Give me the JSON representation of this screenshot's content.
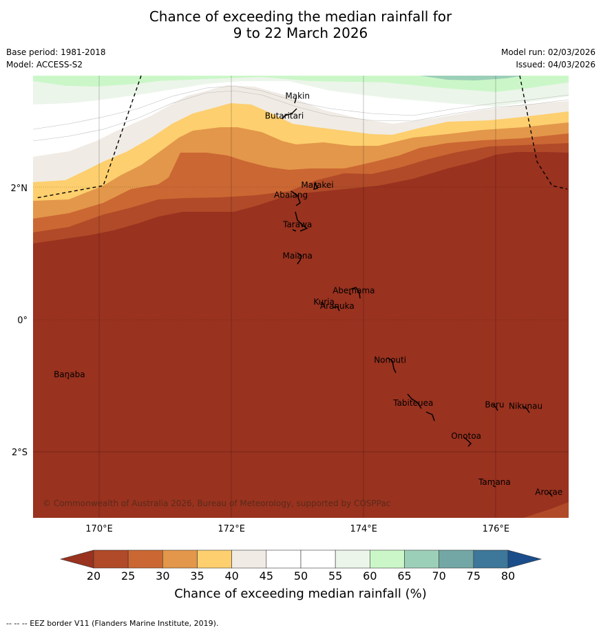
{
  "title": {
    "line1": "Chance of exceeding the median rainfall for",
    "line2": "9 to 22 March 2026"
  },
  "meta": {
    "base_period": "Base period: 1981-2018",
    "model": "Model: ACCESS-S2",
    "model_run": "Model run: 02/03/2026",
    "issued": "Issued: 04/03/2026"
  },
  "map": {
    "lon_ticks": [
      {
        "value": 170,
        "label": "170°E"
      },
      {
        "value": 172,
        "label": "172°E"
      },
      {
        "value": 174,
        "label": "174°E"
      },
      {
        "value": 176,
        "label": "176°E"
      }
    ],
    "lat_ticks": [
      {
        "value": 2,
        "label": "2°N"
      },
      {
        "value": 0,
        "label": "0°"
      },
      {
        "value": -2,
        "label": "2°S"
      }
    ],
    "lon_range": [
      169.0,
      177.1
    ],
    "lat_range": [
      -3.0,
      3.7
    ],
    "copyright": "© Commonwealth of Australia 2026, Bureau of Meteorology, supported by COSPPac",
    "places": [
      {
        "name": "Makin",
        "lon": 173.0,
        "lat": 3.35
      },
      {
        "name": "Butaritari",
        "lon": 172.8,
        "lat": 3.05
      },
      {
        "name": "Marakei",
        "lon": 173.3,
        "lat": 2.0
      },
      {
        "name": "Abaiang",
        "lon": 172.9,
        "lat": 1.85
      },
      {
        "name": "Tarawa",
        "lon": 173.0,
        "lat": 1.4
      },
      {
        "name": "Maiana",
        "lon": 173.0,
        "lat": 0.93
      },
      {
        "name": "Abemama",
        "lon": 173.85,
        "lat": 0.4
      },
      {
        "name": "Kuria",
        "lon": 173.4,
        "lat": 0.23
      },
      {
        "name": "Aranuka",
        "lon": 173.6,
        "lat": 0.17
      },
      {
        "name": "Nonouti",
        "lon": 174.4,
        "lat": -0.65
      },
      {
        "name": "Banaba",
        "lon": 169.55,
        "lat": -0.87
      },
      {
        "name": "Tabiteuea",
        "lon": 174.75,
        "lat": -1.3
      },
      {
        "name": "Beru",
        "lon": 175.98,
        "lat": -1.33
      },
      {
        "name": "Nikunau",
        "lon": 176.45,
        "lat": -1.35
      },
      {
        "name": "Onotoa",
        "lon": 175.55,
        "lat": -1.8
      },
      {
        "name": "Tamana",
        "lon": 175.98,
        "lat": -2.5
      },
      {
        "name": "Arorae",
        "lon": 176.8,
        "lat": -2.65
      }
    ]
  },
  "colorbar": {
    "ticks": [
      "20",
      "25",
      "30",
      "35",
      "40",
      "45",
      "50",
      "55",
      "60",
      "65",
      "70",
      "75",
      "80"
    ],
    "colors": [
      "#99321f",
      "#b04a28",
      "#cb6733",
      "#e3974a",
      "#fdcf6e",
      "#f0ebe4",
      "#ffffff",
      "#ffffff",
      "#ecf5ea",
      "#cbf7c8",
      "#9ccfb8",
      "#72a7a5",
      "#3d7799",
      "#1b4d8a"
    ],
    "label": "Chance of exceeding median rainfall (%)"
  },
  "footnote": "--  --  -- EEZ border V11 (Flanders Marine Institute, 2019)."
}
